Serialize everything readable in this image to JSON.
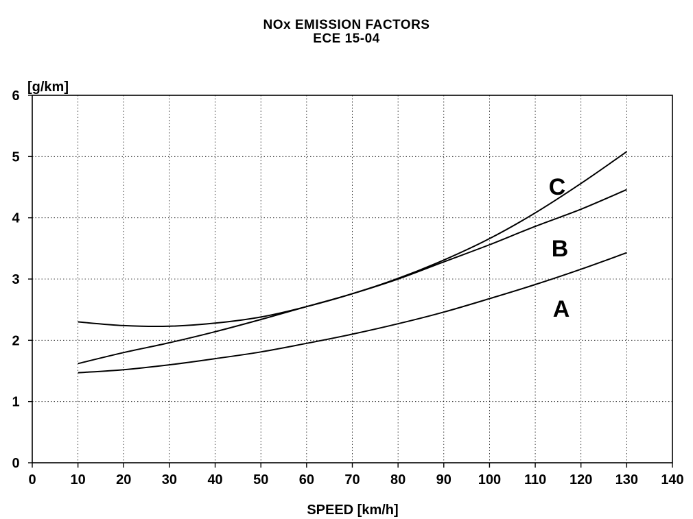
{
  "chart_data": {
    "type": "line",
    "title": "NOx EMISSION FACTORS",
    "subtitle": "ECE 15-04",
    "xlabel": "SPEED [km/h]",
    "ylabel": "[g/km]",
    "xlim": [
      0,
      140
    ],
    "ylim": [
      0,
      6
    ],
    "xticks": [
      0,
      10,
      20,
      30,
      40,
      50,
      60,
      70,
      80,
      90,
      100,
      110,
      120,
      130,
      140
    ],
    "yticks": [
      0,
      1,
      2,
      3,
      4,
      5,
      6
    ],
    "grid": true,
    "x": [
      10,
      20,
      30,
      40,
      50,
      60,
      70,
      80,
      90,
      100,
      110,
      120,
      130
    ],
    "series": [
      {
        "name": "A",
        "values": [
          1.47,
          1.52,
          1.6,
          1.7,
          1.81,
          1.95,
          2.1,
          2.27,
          2.46,
          2.68,
          2.91,
          3.16,
          3.43
        ]
      },
      {
        "name": "B",
        "values": [
          1.62,
          1.8,
          1.96,
          2.14,
          2.34,
          2.55,
          2.76,
          3.0,
          3.28,
          3.56,
          3.86,
          4.14,
          4.46
        ]
      },
      {
        "name": "C",
        "values": [
          2.3,
          2.24,
          2.23,
          2.28,
          2.38,
          2.55,
          2.76,
          3.01,
          3.31,
          3.66,
          4.08,
          4.56,
          5.08
        ]
      }
    ]
  }
}
